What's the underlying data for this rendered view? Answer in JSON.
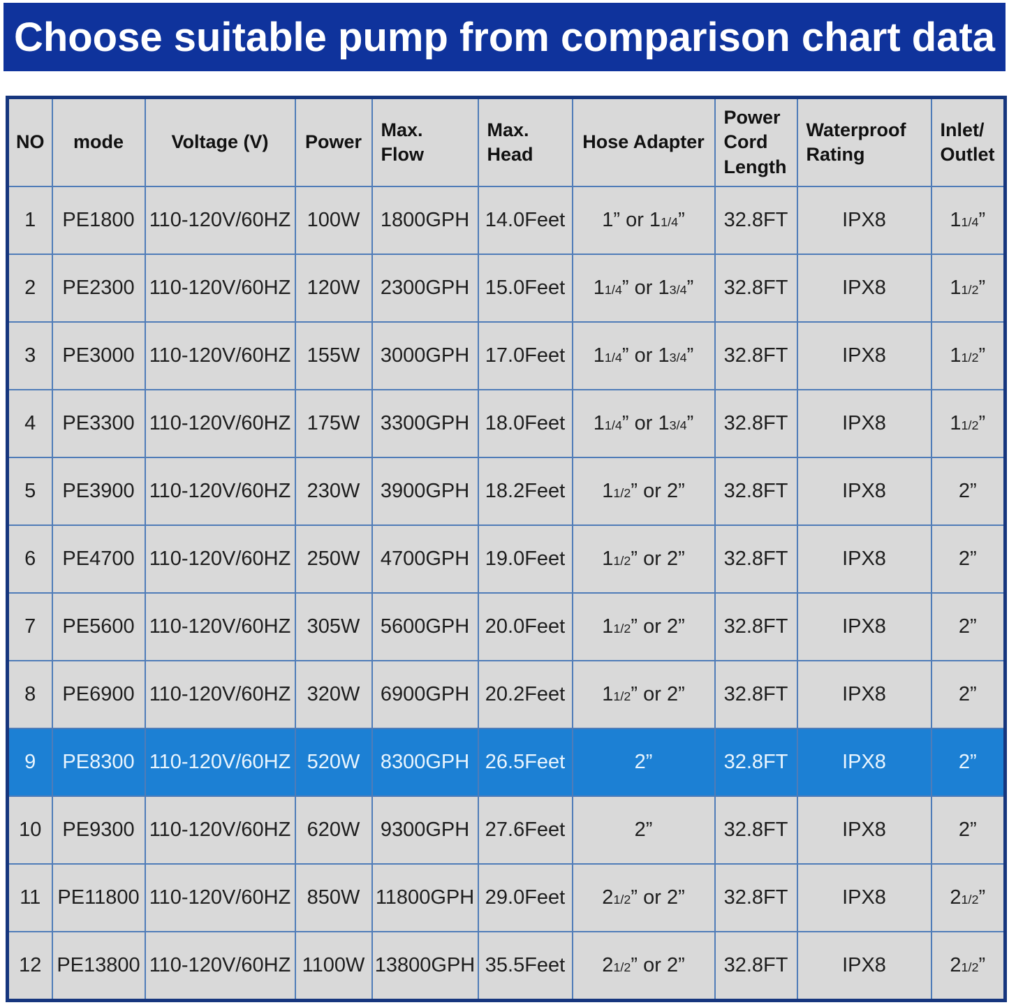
{
  "chart_data": {
    "type": "table",
    "title": "Choose suitable pump from comparison chart data",
    "columns": [
      {
        "key": "no",
        "label": "NO"
      },
      {
        "key": "mode",
        "label": "mode"
      },
      {
        "key": "voltage",
        "label": "Voltage (V)"
      },
      {
        "key": "power",
        "label": "Power"
      },
      {
        "key": "max-flow",
        "label": "Max.\nFlow"
      },
      {
        "key": "max-head",
        "label": "Max.\nHead"
      },
      {
        "key": "hose-adapter",
        "label": "Hose Adapter"
      },
      {
        "key": "power-cord-length",
        "label": "Power\nCord\nLength"
      },
      {
        "key": "waterproof-rating",
        "label": "Waterproof\nRating"
      },
      {
        "key": "inlet-outlet",
        "label": "Inlet/\nOutlet"
      }
    ],
    "rows": [
      [
        "1",
        "PE1800",
        "110-120V/60HZ",
        "100W",
        "1800GPH",
        "14.0Feet",
        "1” or 1{1/4}”",
        "32.8FT",
        "IPX8",
        "1{1/4}”"
      ],
      [
        "2",
        "PE2300",
        "110-120V/60HZ",
        "120W",
        "2300GPH",
        "15.0Feet",
        "1{1/4}” or 1{3/4}”",
        "32.8FT",
        "IPX8",
        "1{1/2}”"
      ],
      [
        "3",
        "PE3000",
        "110-120V/60HZ",
        "155W",
        "3000GPH",
        "17.0Feet",
        "1{1/4}” or 1{3/4}”",
        "32.8FT",
        "IPX8",
        "1{1/2}”"
      ],
      [
        "4",
        "PE3300",
        "110-120V/60HZ",
        "175W",
        "3300GPH",
        "18.0Feet",
        "1{1/4}” or 1{3/4}”",
        "32.8FT",
        "IPX8",
        "1{1/2}”"
      ],
      [
        "5",
        "PE3900",
        "110-120V/60HZ",
        "230W",
        "3900GPH",
        "18.2Feet",
        "1{1/2}” or 2”",
        "32.8FT",
        "IPX8",
        "2”"
      ],
      [
        "6",
        "PE4700",
        "110-120V/60HZ",
        "250W",
        "4700GPH",
        "19.0Feet",
        "1{1/2}” or 2”",
        "32.8FT",
        "IPX8",
        "2”"
      ],
      [
        "7",
        "PE5600",
        "110-120V/60HZ",
        "305W",
        "5600GPH",
        "20.0Feet",
        "1{1/2}” or 2”",
        "32.8FT",
        "IPX8",
        "2”"
      ],
      [
        "8",
        "PE6900",
        "110-120V/60HZ",
        "320W",
        "6900GPH",
        "20.2Feet",
        "1{1/2}” or 2”",
        "32.8FT",
        "IPX8",
        "2”"
      ],
      [
        "9",
        "PE8300",
        "110-120V/60HZ",
        "520W",
        "8300GPH",
        "26.5Feet",
        "2”",
        "32.8FT",
        "IPX8",
        "2”"
      ],
      [
        "10",
        "PE9300",
        "110-120V/60HZ",
        "620W",
        "9300GPH",
        "27.6Feet",
        "2”",
        "32.8FT",
        "IPX8",
        "2”"
      ],
      [
        "11",
        "PE11800",
        "110-120V/60HZ",
        "850W",
        "11800GPH",
        "29.0Feet",
        "2{1/2}” or 2”",
        "32.8FT",
        "IPX8",
        "2{1/2}”"
      ],
      [
        "12",
        "PE13800",
        "110-120V/60HZ",
        "1100W",
        "13800GPH",
        "35.5Feet",
        "2{1/2}” or 2”",
        "32.8FT",
        "IPX8",
        "2{1/2}”"
      ]
    ],
    "highlighted_row": "9",
    "legend_position": "none",
    "grid": true
  },
  "colors": {
    "banner_bg": "#0f339c",
    "banner_text": "#ffffff",
    "cell_bg": "#d9d9d9",
    "border_outer": "#16367e",
    "border_inner": "#4f7cb8",
    "highlight_bg": "#1c80d4",
    "highlight_text": "#e9f5fe"
  }
}
